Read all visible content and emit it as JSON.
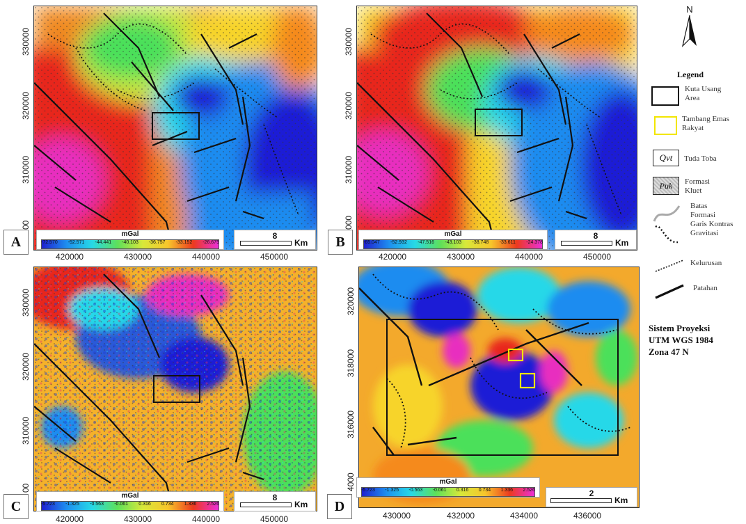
{
  "panels": [
    {
      "label": "A",
      "xticks": [
        "420000",
        "430000",
        "440000",
        "450000"
      ],
      "yticks": [
        "330000",
        "320000",
        "310000",
        "00"
      ],
      "colorbar": {
        "title": "mGal",
        "values": [
          "-72.570",
          "-52.571",
          "-44.441",
          "-40.103",
          "-36.757",
          "-33.152",
          "-26.675"
        ]
      },
      "scale": {
        "value": "8",
        "unit": "Km"
      }
    },
    {
      "label": "B",
      "xticks": [
        "420000",
        "430000",
        "440000",
        "450000"
      ],
      "yticks": [
        "330000",
        "320000",
        "310000",
        "300000"
      ],
      "colorbar": {
        "title": "mGal",
        "values": [
          "-65.047",
          "-52.932",
          "-47.516",
          "-43.103",
          "-38.748",
          "-33.611",
          "-24.378"
        ]
      },
      "scale": {
        "value": "8",
        "unit": "Km"
      }
    },
    {
      "label": "C",
      "xticks": [
        "420000",
        "430000",
        "440000",
        "450000"
      ],
      "yticks": [
        "330000",
        "320000",
        "310000",
        "00"
      ],
      "colorbar": {
        "title": "mGal",
        "values": [
          "-5.723",
          "-1.325",
          "-0.563",
          "-0.061",
          "0.316",
          "0.734",
          "1.336",
          "2.526"
        ]
      },
      "scale": {
        "value": "8",
        "unit": "Km"
      }
    },
    {
      "label": "D",
      "xticks": [
        "430000",
        "432000",
        "434000",
        "436000"
      ],
      "yticks": [
        "320000",
        "318000",
        "316000",
        "4000"
      ],
      "colorbar": {
        "title": "mGal",
        "values": [
          "-5.723",
          "-1.325",
          "-0.563",
          "-0.061",
          "0.316",
          "0.734",
          "1.336",
          "2.526"
        ]
      },
      "scale": {
        "value": "2",
        "unit": "Km"
      }
    }
  ],
  "north": {
    "letter": "N"
  },
  "legend": {
    "title": "Legend",
    "items": [
      {
        "label_1": "Kuta Usang",
        "label_2": "Area",
        "symbol": "black-rectangle"
      },
      {
        "label_1": "Tambang Emas",
        "label_2": "Rakyat",
        "symbol": "yellow-rectangle"
      },
      {
        "label_1": "Tuda Toba",
        "symbol_text": "Qvt",
        "symbol": "box-with-text"
      },
      {
        "label_1": "Formasi",
        "label_2": "Kluet",
        "symbol_text": "Puk",
        "symbol": "patterned-box"
      },
      {
        "label_1": "Batas",
        "label_2": "Formasi",
        "symbol": "gray-curve"
      },
      {
        "label_1": "Garis Kontras",
        "label_2": "Gravitasi",
        "symbol": "dotted-curve"
      },
      {
        "label_1": "Kelurusan",
        "symbol": "dotted-line"
      },
      {
        "label_1": "Patahan",
        "symbol": "thick-line"
      }
    ]
  },
  "projection": {
    "line_1": "Sistem Proyeksi",
    "line_2": "UTM WGS 1984",
    "line_3": "Zona 47 N"
  },
  "colors": {
    "rainbow": [
      "#1b1bd6",
      "#1f8cf0",
      "#25d8e8",
      "#4be05a",
      "#c8e63c",
      "#f7d42b",
      "#f58a1f",
      "#e8261f",
      "#e82fbf"
    ]
  }
}
